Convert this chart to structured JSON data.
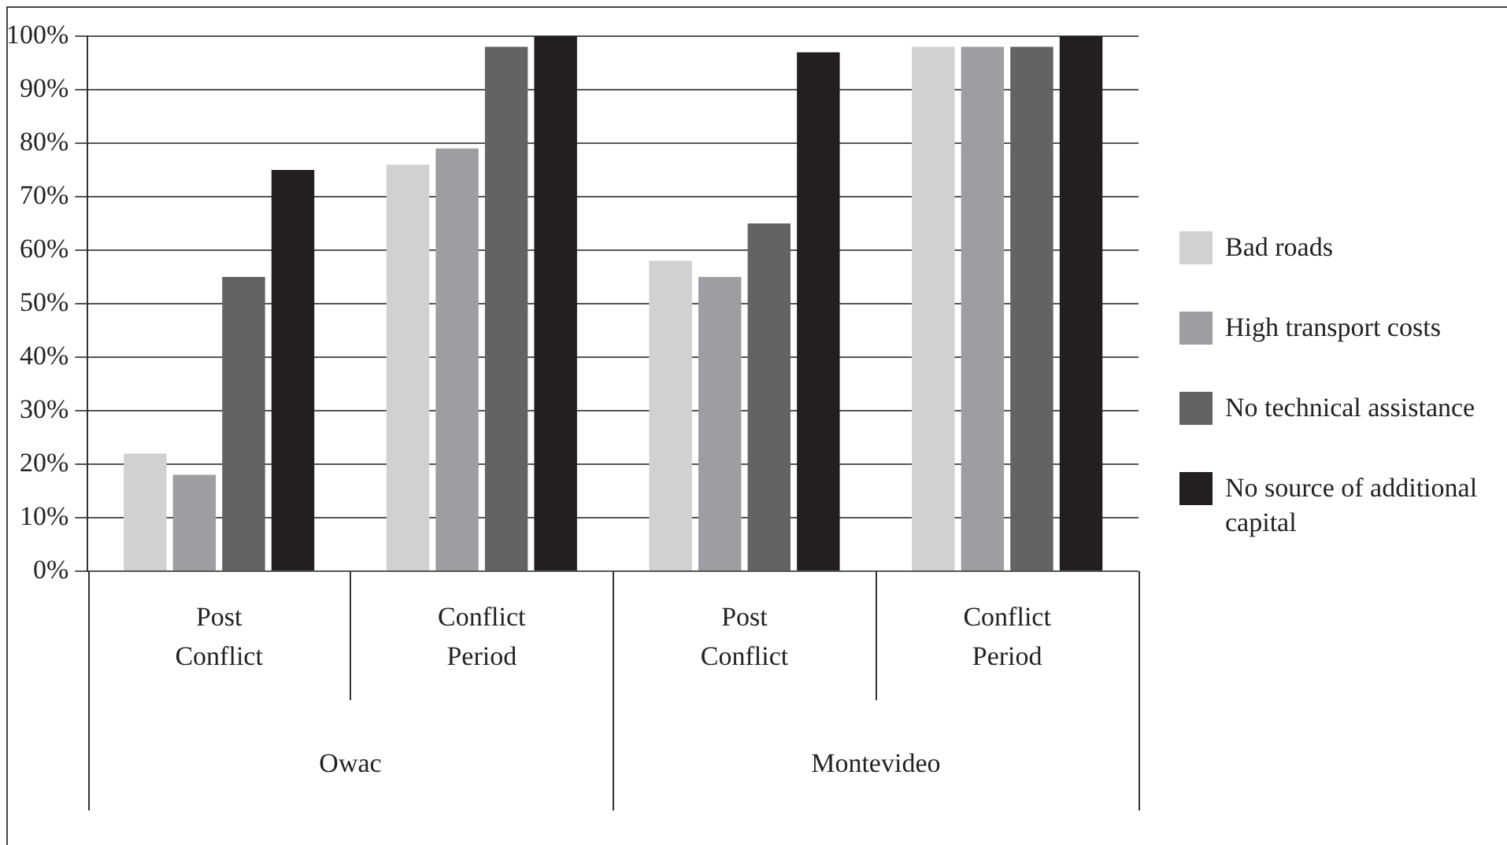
{
  "chart_data": {
    "type": "bar",
    "categories": [
      "Post Conflict",
      "Conflict Period",
      "Post Conflict",
      "Conflict Period"
    ],
    "series": [
      {
        "name": "Bad roads",
        "color": "#d0d1d3",
        "values": [
          22,
          76,
          58,
          98
        ]
      },
      {
        "name": "High transport costs",
        "color": "#9d9ea2",
        "values": [
          18,
          79,
          55,
          98
        ]
      },
      {
        "name": "No technical assistance",
        "color": "#636365",
        "values": [
          55,
          98,
          65,
          98
        ]
      },
      {
        "name": "No source of additional capital",
        "color": "#231f20",
        "values": [
          75,
          100,
          97,
          100
        ]
      }
    ],
    "annotations": [
      "Owac",
      "Montevideo"
    ],
    "ylim": [
      0,
      100
    ],
    "yticks": [
      {
        "value": 0,
        "label": "0%"
      },
      {
        "value": 10,
        "label": "10%"
      },
      {
        "value": 20,
        "label": "20%"
      },
      {
        "value": 30,
        "label": "30%"
      },
      {
        "value": 40,
        "label": "40%"
      },
      {
        "value": 50,
        "label": "50%"
      },
      {
        "value": 60,
        "label": "60%"
      },
      {
        "value": 70,
        "label": "70%"
      },
      {
        "value": 80,
        "label": "80%"
      },
      {
        "value": 90,
        "label": "90%"
      },
      {
        "value": 100,
        "label": "100%"
      }
    ],
    "grid": "y",
    "legend": "right"
  }
}
